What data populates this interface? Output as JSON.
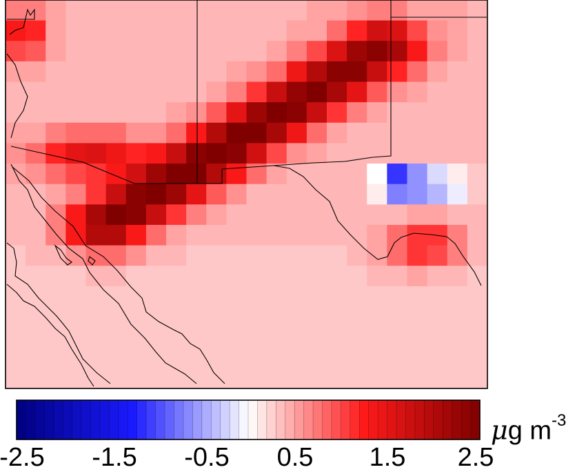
{
  "legend": {
    "min": -2.5,
    "max": 2.5,
    "steps": 50,
    "tick_labels": [
      "-2.5",
      "-1.5",
      "-0.5",
      "0.5",
      "1.5",
      "2.5"
    ],
    "unit_symbol": "μ",
    "unit_main": "g m",
    "unit_exponent": "-3"
  },
  "colors": {
    "negative_extreme": "#000080",
    "negative_mid": "#1a1aff",
    "neutral": "#ffffff",
    "positive_mid": "#ff1a1a",
    "positive_extreme": "#800000",
    "borders": "#000000"
  },
  "map": {
    "region": "Southwestern United States and Northern Mexico",
    "variable": "concentration difference",
    "grid_columns": 24,
    "grid_rows": 19,
    "feature_summary": [
      {
        "description": "Strong positive band along the US–Mexico border and southern Arizona/New Mexico",
        "peak_value": 2.5
      },
      {
        "description": "Localized negative cell in west Texas",
        "min_value": -1.6
      },
      {
        "description": "Weak positive background over Mexico",
        "typical_value": 0.3
      }
    ]
  }
}
